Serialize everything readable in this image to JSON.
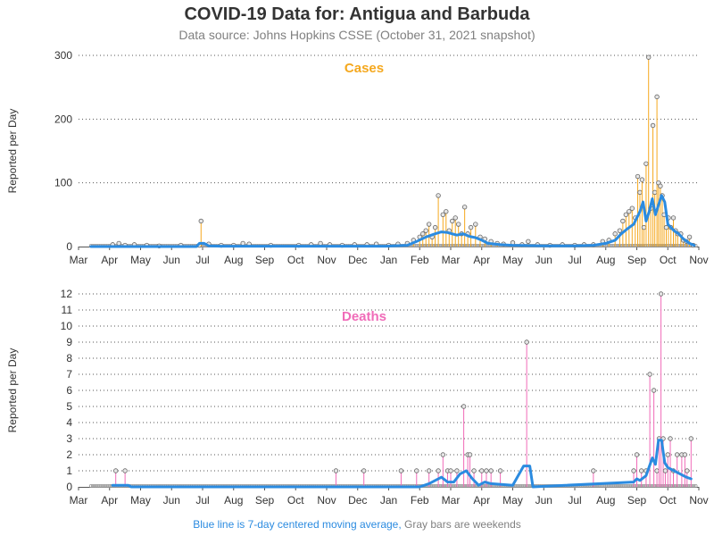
{
  "header": {
    "title": "COVID-19 Data for: Antigua and Barbuda",
    "subtitle": "Data source: Johns Hopkins CSSE (October 31, 2021 snapshot)"
  },
  "footnote": {
    "blue_text": "Blue line is 7-day centered moving average,",
    "gray_text": "Gray bars are weekends"
  },
  "colors": {
    "cases": "#f5a81e",
    "deaths": "#f06bb8",
    "average": "#2b8be0",
    "weekend": "#999999"
  },
  "chart_data": [
    {
      "type": "line",
      "title": "Cases",
      "ylabel": "Reported per Day",
      "ylim": [
        0,
        300
      ],
      "yticks": [
        "0",
        "100",
        "200",
        "300"
      ],
      "grid": "horizontal dotted",
      "xticks": [
        "Mar",
        "Apr",
        "May",
        "Jun",
        "Jul",
        "Aug",
        "Sep",
        "Oct",
        "Nov",
        "Dec",
        "Jan",
        "Feb",
        "Mar",
        "Apr",
        "May",
        "Jun",
        "Jul",
        "Aug",
        "Sep",
        "Oct",
        "Nov"
      ],
      "spikes": [
        {
          "month": 1.1,
          "value": 3
        },
        {
          "month": 1.3,
          "value": 5
        },
        {
          "month": 1.5,
          "value": 2
        },
        {
          "month": 1.8,
          "value": 3
        },
        {
          "month": 2.2,
          "value": 2
        },
        {
          "month": 2.6,
          "value": 1
        },
        {
          "month": 3.3,
          "value": 2
        },
        {
          "month": 3.9,
          "value": 2
        },
        {
          "month": 3.95,
          "value": 40
        },
        {
          "month": 4.2,
          "value": 4
        },
        {
          "month": 4.6,
          "value": 2
        },
        {
          "month": 5.0,
          "value": 2
        },
        {
          "month": 5.3,
          "value": 5
        },
        {
          "month": 5.5,
          "value": 4
        },
        {
          "month": 6.2,
          "value": 2
        },
        {
          "month": 7.1,
          "value": 2
        },
        {
          "month": 7.5,
          "value": 3
        },
        {
          "month": 7.8,
          "value": 5
        },
        {
          "month": 8.1,
          "value": 3
        },
        {
          "month": 8.5,
          "value": 2
        },
        {
          "month": 8.9,
          "value": 3
        },
        {
          "month": 9.3,
          "value": 3
        },
        {
          "month": 9.6,
          "value": 4
        },
        {
          "month": 10.0,
          "value": 2
        },
        {
          "month": 10.3,
          "value": 4
        },
        {
          "month": 10.6,
          "value": 5
        },
        {
          "month": 10.8,
          "value": 10
        },
        {
          "month": 11.0,
          "value": 15
        },
        {
          "month": 11.1,
          "value": 20
        },
        {
          "month": 11.2,
          "value": 25
        },
        {
          "month": 11.3,
          "value": 35
        },
        {
          "month": 11.4,
          "value": 15
        },
        {
          "month": 11.5,
          "value": 30
        },
        {
          "month": 11.6,
          "value": 80
        },
        {
          "month": 11.75,
          "value": 50
        },
        {
          "month": 11.85,
          "value": 55
        },
        {
          "month": 11.95,
          "value": 25
        },
        {
          "month": 12.05,
          "value": 40
        },
        {
          "month": 12.15,
          "value": 45
        },
        {
          "month": 12.25,
          "value": 35
        },
        {
          "month": 12.35,
          "value": 20
        },
        {
          "month": 12.45,
          "value": 62
        },
        {
          "month": 12.55,
          "value": 20
        },
        {
          "month": 12.65,
          "value": 30
        },
        {
          "month": 12.8,
          "value": 35
        },
        {
          "month": 12.95,
          "value": 15
        },
        {
          "month": 13.1,
          "value": 12
        },
        {
          "month": 13.3,
          "value": 8
        },
        {
          "month": 13.5,
          "value": 5
        },
        {
          "month": 13.7,
          "value": 4
        },
        {
          "month": 14.0,
          "value": 6
        },
        {
          "month": 14.3,
          "value": 3
        },
        {
          "month": 14.5,
          "value": 8
        },
        {
          "month": 14.8,
          "value": 3
        },
        {
          "month": 15.2,
          "value": 2
        },
        {
          "month": 15.6,
          "value": 3
        },
        {
          "month": 16.0,
          "value": 2
        },
        {
          "month": 16.3,
          "value": 3
        },
        {
          "month": 16.6,
          "value": 3
        },
        {
          "month": 16.9,
          "value": 8
        },
        {
          "month": 17.1,
          "value": 10
        },
        {
          "month": 17.3,
          "value": 20
        },
        {
          "month": 17.45,
          "value": 25
        },
        {
          "month": 17.55,
          "value": 40
        },
        {
          "month": 17.65,
          "value": 50
        },
        {
          "month": 17.75,
          "value": 55
        },
        {
          "month": 17.85,
          "value": 60
        },
        {
          "month": 17.95,
          "value": 45
        },
        {
          "month": 18.03,
          "value": 110
        },
        {
          "month": 18.1,
          "value": 85
        },
        {
          "month": 18.17,
          "value": 105
        },
        {
          "month": 18.23,
          "value": 30
        },
        {
          "month": 18.3,
          "value": 130
        },
        {
          "month": 18.38,
          "value": 297
        },
        {
          "month": 18.45,
          "value": 60
        },
        {
          "month": 18.52,
          "value": 190
        },
        {
          "month": 18.58,
          "value": 85
        },
        {
          "month": 18.65,
          "value": 235
        },
        {
          "month": 18.7,
          "value": 100
        },
        {
          "month": 18.76,
          "value": 95
        },
        {
          "month": 18.82,
          "value": 80
        },
        {
          "month": 18.88,
          "value": 50
        },
        {
          "month": 18.95,
          "value": 30
        },
        {
          "month": 19.02,
          "value": 45
        },
        {
          "month": 19.1,
          "value": 30
        },
        {
          "month": 19.18,
          "value": 45
        },
        {
          "month": 19.25,
          "value": 25
        },
        {
          "month": 19.32,
          "value": 20
        },
        {
          "month": 19.42,
          "value": 20
        },
        {
          "month": 19.5,
          "value": 10
        },
        {
          "month": 19.6,
          "value": 8
        },
        {
          "month": 19.7,
          "value": 15
        },
        {
          "month": 19.82,
          "value": 2
        }
      ],
      "moving_average": [
        [
          0.4,
          0
        ],
        [
          3.8,
          0
        ],
        [
          3.9,
          5
        ],
        [
          4.05,
          5
        ],
        [
          4.2,
          1
        ],
        [
          4.6,
          0.5
        ],
        [
          9.9,
          0.5
        ],
        [
          10.6,
          2
        ],
        [
          10.9,
          8
        ],
        [
          11.2,
          15
        ],
        [
          11.5,
          20
        ],
        [
          11.7,
          23
        ],
        [
          11.9,
          22
        ],
        [
          12.2,
          18
        ],
        [
          12.4,
          20
        ],
        [
          12.6,
          16
        ],
        [
          12.8,
          14
        ],
        [
          13.0,
          10
        ],
        [
          13.2,
          5
        ],
        [
          13.6,
          3
        ],
        [
          14.0,
          2
        ],
        [
          15.0,
          1
        ],
        [
          16.0,
          1
        ],
        [
          16.6,
          2
        ],
        [
          17.0,
          5
        ],
        [
          17.3,
          10
        ],
        [
          17.5,
          20
        ],
        [
          17.7,
          28
        ],
        [
          17.9,
          35
        ],
        [
          18.0,
          45
        ],
        [
          18.1,
          55
        ],
        [
          18.2,
          70
        ],
        [
          18.3,
          40
        ],
        [
          18.4,
          55
        ],
        [
          18.5,
          75
        ],
        [
          18.6,
          50
        ],
        [
          18.7,
          65
        ],
        [
          18.8,
          80
        ],
        [
          18.9,
          70
        ],
        [
          19.0,
          35
        ],
        [
          19.1,
          30
        ],
        [
          19.2,
          25
        ],
        [
          19.35,
          20
        ],
        [
          19.5,
          12
        ],
        [
          19.7,
          5
        ],
        [
          19.85,
          2
        ]
      ]
    },
    {
      "type": "line",
      "title": "Deaths",
      "ylabel": "Reported per Day",
      "ylim": [
        0,
        12
      ],
      "yticks": [
        "0",
        "1",
        "2",
        "3",
        "4",
        "5",
        "6",
        "7",
        "8",
        "9",
        "10",
        "11",
        "12"
      ],
      "grid": "horizontal dotted",
      "xticks": [
        "Mar",
        "Apr",
        "May",
        "Jun",
        "Jul",
        "Aug",
        "Sep",
        "Oct",
        "Nov",
        "Dec",
        "Jan",
        "Feb",
        "Mar",
        "Apr",
        "May",
        "Jun",
        "Jul",
        "Aug",
        "Sep",
        "Oct",
        "Nov"
      ],
      "spikes": [
        {
          "month": 1.2,
          "value": 1
        },
        {
          "month": 1.5,
          "value": 1
        },
        {
          "month": 8.3,
          "value": 1
        },
        {
          "month": 9.2,
          "value": 1
        },
        {
          "month": 10.4,
          "value": 1
        },
        {
          "month": 10.9,
          "value": 1
        },
        {
          "month": 11.3,
          "value": 1
        },
        {
          "month": 11.6,
          "value": 1
        },
        {
          "month": 11.9,
          "value": 1
        },
        {
          "month": 11.75,
          "value": 2
        },
        {
          "month": 12.0,
          "value": 1
        },
        {
          "month": 12.2,
          "value": 1
        },
        {
          "month": 12.42,
          "value": 5
        },
        {
          "month": 12.55,
          "value": 2
        },
        {
          "month": 12.62,
          "value": 2
        },
        {
          "month": 12.75,
          "value": 1
        },
        {
          "month": 13.0,
          "value": 1
        },
        {
          "month": 13.15,
          "value": 1
        },
        {
          "month": 13.3,
          "value": 1
        },
        {
          "month": 13.6,
          "value": 1
        },
        {
          "month": 14.45,
          "value": 9
        },
        {
          "month": 16.6,
          "value": 1
        },
        {
          "month": 17.9,
          "value": 1
        },
        {
          "month": 18.0,
          "value": 2
        },
        {
          "month": 18.15,
          "value": 1
        },
        {
          "month": 18.3,
          "value": 1
        },
        {
          "month": 18.42,
          "value": 7
        },
        {
          "month": 18.55,
          "value": 6
        },
        {
          "month": 18.65,
          "value": 1
        },
        {
          "month": 18.72,
          "value": 3
        },
        {
          "month": 18.78,
          "value": 12
        },
        {
          "month": 18.85,
          "value": 3
        },
        {
          "month": 18.92,
          "value": 1
        },
        {
          "month": 19.0,
          "value": 2
        },
        {
          "month": 19.08,
          "value": 3
        },
        {
          "month": 19.18,
          "value": 1
        },
        {
          "month": 19.3,
          "value": 2
        },
        {
          "month": 19.45,
          "value": 2
        },
        {
          "month": 19.55,
          "value": 2
        },
        {
          "month": 19.62,
          "value": 1
        },
        {
          "month": 19.75,
          "value": 3
        }
      ],
      "moving_average": [
        [
          1.1,
          0.1
        ],
        [
          1.6,
          0.1
        ],
        [
          1.7,
          0
        ],
        [
          11.0,
          0
        ],
        [
          11.3,
          0.2
        ],
        [
          11.7,
          0.6
        ],
        [
          11.9,
          0.3
        ],
        [
          12.1,
          0.3
        ],
        [
          12.3,
          0.8
        ],
        [
          12.5,
          1.0
        ],
        [
          12.7,
          0.5
        ],
        [
          12.9,
          0.1
        ],
        [
          13.1,
          0.3
        ],
        [
          13.3,
          0.2
        ],
        [
          14.0,
          0.1
        ],
        [
          14.35,
          1.3
        ],
        [
          14.55,
          1.3
        ],
        [
          14.65,
          0
        ],
        [
          17.9,
          0.3
        ],
        [
          18.0,
          0.5
        ],
        [
          18.1,
          0.4
        ],
        [
          18.3,
          0.7
        ],
        [
          18.5,
          1.8
        ],
        [
          18.6,
          1.4
        ],
        [
          18.7,
          2.9
        ],
        [
          18.8,
          2.9
        ],
        [
          18.85,
          2.2
        ],
        [
          18.9,
          1.5
        ],
        [
          19.0,
          1.2
        ],
        [
          19.2,
          1.0
        ],
        [
          19.4,
          0.8
        ],
        [
          19.6,
          0.6
        ],
        [
          19.75,
          0.5
        ]
      ]
    }
  ]
}
